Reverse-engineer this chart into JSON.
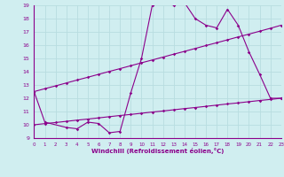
{
  "bg_color": "#d0eef0",
  "grid_color": "#b8dde0",
  "line_color": "#8b008b",
  "xlabel": "Windchill (Refroidissement éolien,°C)",
  "xmin": 0,
  "xmax": 23,
  "ymin": 9,
  "ymax": 19,
  "line1_x": [
    0,
    1,
    3,
    4,
    5,
    6,
    7,
    8,
    9,
    10,
    11,
    12,
    13,
    14,
    15,
    16,
    17,
    18,
    19,
    20,
    21,
    22,
    23
  ],
  "line1_y": [
    12.5,
    10.2,
    9.8,
    9.7,
    10.2,
    10.1,
    9.4,
    9.5,
    12.4,
    15.0,
    19.0,
    19.2,
    19.0,
    19.2,
    18.0,
    17.5,
    17.3,
    18.7,
    17.5,
    15.5,
    13.8,
    12.0,
    12.0
  ],
  "line2_x": [
    0,
    1,
    2,
    3,
    4,
    5,
    6,
    7,
    8,
    9,
    10,
    11,
    12,
    13,
    14,
    15,
    16,
    17,
    18,
    19,
    20,
    21,
    22,
    23
  ],
  "line2_y": [
    10.0,
    10.09,
    10.17,
    10.26,
    10.35,
    10.43,
    10.52,
    10.61,
    10.7,
    10.78,
    10.87,
    10.96,
    11.04,
    11.13,
    11.22,
    11.3,
    11.39,
    11.48,
    11.57,
    11.65,
    11.74,
    11.83,
    11.91,
    12.0
  ],
  "line3_x": [
    0,
    1,
    2,
    3,
    4,
    5,
    6,
    7,
    8,
    9,
    10,
    11,
    12,
    13,
    14,
    15,
    16,
    17,
    18,
    19,
    20,
    21,
    22,
    23
  ],
  "line3_y": [
    12.5,
    12.72,
    12.93,
    13.15,
    13.37,
    13.58,
    13.8,
    14.02,
    14.23,
    14.45,
    14.67,
    14.88,
    15.1,
    15.32,
    15.53,
    15.75,
    15.97,
    16.18,
    16.4,
    16.62,
    16.83,
    17.05,
    17.27,
    17.5
  ]
}
